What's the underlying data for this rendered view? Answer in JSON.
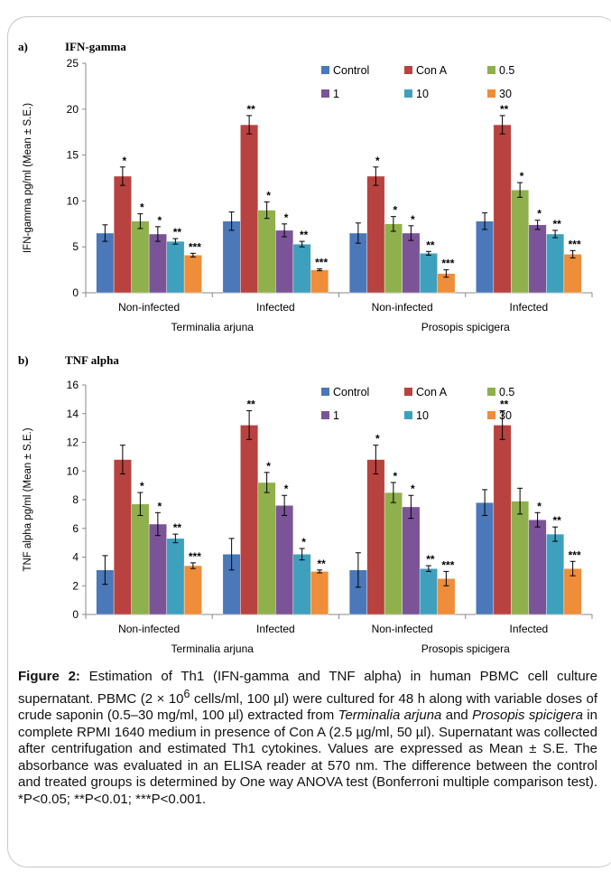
{
  "colors": {
    "Control": "#4a78b8",
    "Con A": "#b8423f",
    "0.5": "#8fb04c",
    "1": "#7a5497",
    "10": "#3fa0bd",
    "30": "#ee8d3a"
  },
  "chart_data": [
    {
      "panel_label": "a)",
      "title": "IFN-gamma",
      "type": "bar",
      "ylabel": "IFN-gamma pg/ml (Mean ± S.E.)",
      "ylim": [
        0,
        25
      ],
      "yticks": [
        0,
        5,
        10,
        15,
        20,
        25
      ],
      "categories": [
        "Non-infected",
        "Infected",
        "Non-infected",
        "Infected"
      ],
      "groups": [
        "Terminalia arjuna",
        "Prosopis spicigera"
      ],
      "legend": "top-right",
      "series": [
        {
          "name": "Control",
          "values": [
            6.5,
            7.8,
            6.5,
            7.8
          ],
          "errors": [
            0.9,
            1.0,
            1.1,
            0.9
          ],
          "sig": [
            "",
            "",
            "",
            ""
          ]
        },
        {
          "name": "Con A",
          "values": [
            12.7,
            18.3,
            12.7,
            18.3
          ],
          "errors": [
            1.0,
            1.0,
            1.0,
            1.0
          ],
          "sig": [
            "*",
            "**",
            "*",
            "**"
          ]
        },
        {
          "name": "0.5",
          "values": [
            7.8,
            9.0,
            7.5,
            11.2
          ],
          "errors": [
            0.8,
            0.9,
            0.8,
            0.8
          ],
          "sig": [
            "*",
            "*",
            "*",
            "*"
          ]
        },
        {
          "name": "1",
          "values": [
            6.4,
            6.8,
            6.5,
            7.4
          ],
          "errors": [
            0.8,
            0.7,
            0.8,
            0.5
          ],
          "sig": [
            "*",
            "*",
            "*",
            "*"
          ]
        },
        {
          "name": "10",
          "values": [
            5.6,
            5.3,
            4.3,
            6.4
          ],
          "errors": [
            0.3,
            0.3,
            0.2,
            0.4
          ],
          "sig": [
            "**",
            "**",
            "**",
            "**"
          ]
        },
        {
          "name": "30",
          "values": [
            4.1,
            2.5,
            2.1,
            4.2
          ],
          "errors": [
            0.2,
            0.1,
            0.4,
            0.4
          ],
          "sig": [
            "***",
            "***",
            "***",
            "***"
          ]
        }
      ]
    },
    {
      "panel_label": "b)",
      "title": "TNF alpha",
      "type": "bar",
      "ylabel": "TNF alpha  pg/ml (Mean ± S.E.)",
      "ylim": [
        0,
        16
      ],
      "yticks": [
        0,
        2,
        4,
        6,
        8,
        10,
        12,
        14,
        16
      ],
      "categories": [
        "Non-infected",
        "Infected",
        "Non-infected",
        "Infected"
      ],
      "groups": [
        "Terminalia arjuna",
        "Prosopis spicigera"
      ],
      "legend": "top-right",
      "series": [
        {
          "name": "Control",
          "values": [
            3.1,
            4.2,
            3.1,
            7.8
          ],
          "errors": [
            1.0,
            1.1,
            1.2,
            0.9
          ],
          "sig": [
            "",
            "",
            "",
            ""
          ]
        },
        {
          "name": "Con A",
          "values": [
            10.8,
            13.2,
            10.8,
            13.2
          ],
          "errors": [
            1.0,
            1.0,
            1.0,
            1.0
          ],
          "sig": [
            "",
            "**",
            "*",
            "**"
          ]
        },
        {
          "name": "0.5",
          "values": [
            7.7,
            9.2,
            8.5,
            7.9
          ],
          "errors": [
            0.8,
            0.7,
            0.7,
            0.9
          ],
          "sig": [
            "*",
            "*",
            "*",
            ""
          ]
        },
        {
          "name": "1",
          "values": [
            6.3,
            7.6,
            7.5,
            6.6
          ],
          "errors": [
            0.8,
            0.7,
            0.8,
            0.5
          ],
          "sig": [
            "*",
            "*",
            "*",
            "*"
          ]
        },
        {
          "name": "10",
          "values": [
            5.3,
            4.2,
            3.2,
            5.6
          ],
          "errors": [
            0.3,
            0.4,
            0.2,
            0.5
          ],
          "sig": [
            "**",
            "*",
            "**",
            "**"
          ]
        },
        {
          "name": "30",
          "values": [
            3.4,
            3.0,
            2.5,
            3.2
          ],
          "errors": [
            0.2,
            0.1,
            0.5,
            0.5
          ],
          "sig": [
            "***",
            "**",
            "***",
            "***"
          ]
        }
      ]
    }
  ],
  "caption": {
    "label": "Figure 2:",
    "p1": " Estimation of Th1 (IFN-gamma and TNF alpha) in human PBMC cell culture supernatant. PBMC (2 × 10",
    "sup": "6",
    "p2": " cells/ml, 100 µl) were cultured for 48 h along with variable doses of crude saponin (0.5–30 mg/ml, 100 µl) extracted from ",
    "sp1": "Terminalia arjuna",
    "p3": " and ",
    "sp2": "Prosopis spicigera",
    "p4": " in complete RPMI 1640 medium in presence of Con A (2.5 µg/ml, 50 µl). Supernatant was collected after centrifugation and estimated Th1 cytokines. Values are expressed as Mean ± S.E. The absorbance was evaluated in an ELISA reader at 570 nm. The difference between the control and treated groups is determined by One way ANOVA test (Bonferroni multiple comparison test). *P<0.05; **P<0.01; ***P<0.001."
  }
}
